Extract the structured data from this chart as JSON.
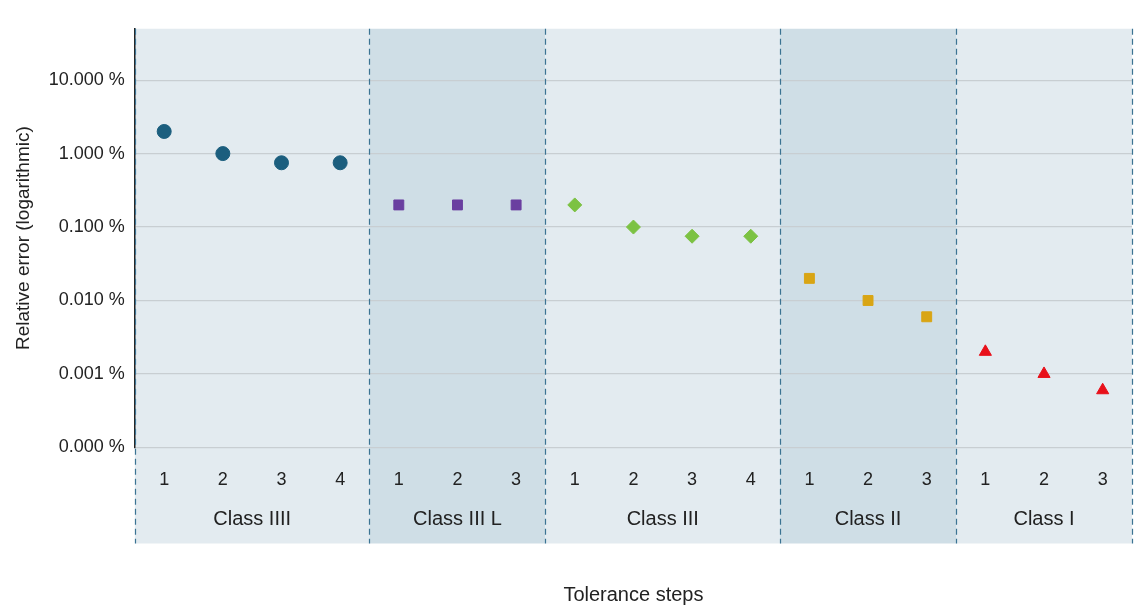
{
  "chart_data": {
    "type": "scatter",
    "xlabel": "Tolerance steps",
    "ylabel": "Relative error (logarithmic)",
    "categories": [
      "1",
      "2",
      "3",
      "4",
      "1",
      "2",
      "3",
      "1",
      "2",
      "3",
      "4",
      "1",
      "2",
      "3",
      "1",
      "2",
      "3"
    ],
    "series": [
      {
        "color": "#1b5e7e",
        "marker": "circle",
        "values": [
          2,
          1,
          0.75,
          0.75,
          null,
          null,
          null,
          null,
          null,
          null,
          null,
          null,
          null,
          null,
          null,
          null,
          null
        ]
      },
      {
        "color": "#6a3fa0",
        "marker": "square",
        "values": [
          null,
          null,
          null,
          null,
          0.2,
          0.2,
          0.2,
          null,
          null,
          null,
          null,
          null,
          null,
          null,
          null,
          null,
          null
        ]
      },
      {
        "color": "#7cc243",
        "marker": "diamond",
        "values": [
          null,
          null,
          null,
          null,
          null,
          null,
          null,
          0.2,
          0.1,
          0.075,
          0.075,
          null,
          null,
          null,
          null,
          null,
          null
        ]
      },
      {
        "color": "#d9a514",
        "marker": "square",
        "values": [
          null,
          null,
          null,
          null,
          null,
          null,
          null,
          null,
          null,
          null,
          null,
          0.02,
          0.01,
          0.006,
          null,
          null,
          null
        ]
      },
      {
        "color": "#e8101a",
        "marker": "triangle",
        "values": [
          null,
          null,
          null,
          null,
          null,
          null,
          null,
          null,
          null,
          null,
          null,
          null,
          null,
          null,
          0.002,
          0.001,
          0.0006
        ]
      }
    ],
    "annotations": [
      "Class IIII",
      "Class III L",
      "Class III",
      "Class II",
      "Class I"
    ],
    "log": "y",
    "ylim": [
      0.0001,
      50
    ],
    "yticks": [
      {
        "value": 0.0001,
        "label": "0.000 %"
      },
      {
        "value": 0.001,
        "label": "0.001 %"
      },
      {
        "value": 0.01,
        "label": "0.010 %"
      },
      {
        "value": 0.1,
        "label": "0.100 %"
      },
      {
        "value": 1,
        "label": "1.000 %"
      },
      {
        "value": 10,
        "label": "10.000 %"
      }
    ],
    "grid": "y",
    "legend": false
  }
}
